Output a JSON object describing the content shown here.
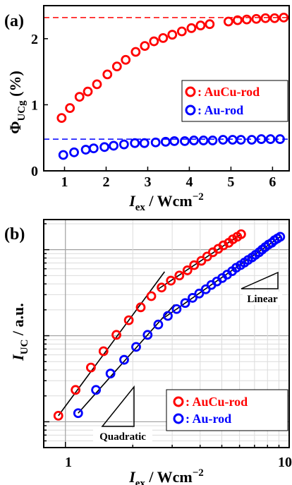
{
  "chart_data": [
    {
      "panel_label": "(a)",
      "type": "scatter",
      "xlabel_main": "I",
      "xlabel_sub": "ex",
      "xlabel_rest": " / Wcm",
      "xlabel_sup": "−2",
      "ylabel_main": "Φ",
      "ylabel_sub": "UCg",
      "ylabel_rest": " (%)",
      "xlim": [
        0.5,
        6.4
      ],
      "ylim": [
        0,
        2.5
      ],
      "xticks": [
        1,
        2,
        3,
        4,
        5,
        6
      ],
      "xtick_labels": [
        "1",
        "2",
        "3",
        "4",
        "5",
        "6"
      ],
      "yticks": [
        0,
        1,
        2
      ],
      "ytick_labels": [
        "0",
        "1",
        "2"
      ],
      "grid": false,
      "legend_placement": "center-right",
      "reference_lines": [
        {
          "series": "AuCu-rod",
          "y": 2.32
        },
        {
          "series": "Au-rod",
          "y": 0.48
        }
      ],
      "series": [
        {
          "name": ": AuCu-rod",
          "color": "#ff0000",
          "x": [
            0.93,
            1.13,
            1.36,
            1.56,
            1.78,
            2.03,
            2.26,
            2.47,
            2.71,
            2.93,
            3.15,
            3.37,
            3.59,
            3.82,
            4.05,
            4.27,
            4.49,
            4.94,
            5.16,
            5.38,
            5.61,
            5.83,
            6.05,
            6.27
          ],
          "y": [
            0.8,
            0.95,
            1.12,
            1.2,
            1.31,
            1.46,
            1.58,
            1.68,
            1.8,
            1.89,
            1.96,
            2.01,
            2.06,
            2.11,
            2.16,
            2.2,
            2.22,
            2.26,
            2.28,
            2.29,
            2.3,
            2.31,
            2.31,
            2.32
          ]
        },
        {
          "name": ": Au-rod",
          "color": "#0000ff",
          "x": [
            0.97,
            1.23,
            1.51,
            1.7,
            1.96,
            2.18,
            2.43,
            2.69,
            2.92,
            3.19,
            3.43,
            3.64,
            3.89,
            4.11,
            4.34,
            4.56,
            4.81,
            5.04,
            5.24,
            5.5,
            5.73,
            5.95,
            6.18
          ],
          "y": [
            0.24,
            0.28,
            0.32,
            0.34,
            0.36,
            0.38,
            0.4,
            0.42,
            0.42,
            0.43,
            0.44,
            0.45,
            0.45,
            0.46,
            0.46,
            0.46,
            0.47,
            0.47,
            0.47,
            0.47,
            0.48,
            0.48,
            0.48
          ]
        }
      ]
    },
    {
      "panel_label": "(b)",
      "type": "scatter",
      "xscale": "log",
      "yscale": "log",
      "xlabel_main": "I",
      "xlabel_sub": "ex",
      "xlabel_rest": " / Wcm",
      "xlabel_sup": "−2",
      "ylabel_main": "I",
      "ylabel_sub": "UC",
      "ylabel_rest": " / a.u.",
      "xlim": [
        0.8,
        10
      ],
      "ylim_decades": [
        -2.3,
        0.35
      ],
      "xtick_labels": [
        "1",
        "10"
      ],
      "grid": true,
      "legend_placement": "bottom-right",
      "slope_labels": [
        "Quadratic",
        "Linear"
      ],
      "series": [
        {
          "name": ": AuCu-rod",
          "color": "#ff0000",
          "x": [
            0.93,
            1.11,
            1.3,
            1.48,
            1.69,
            1.92,
            2.17,
            2.42,
            2.69,
            2.96,
            3.23,
            3.51,
            3.76,
            4.05,
            4.3,
            4.56,
            4.82,
            5.08,
            5.37,
            5.6,
            5.86,
            6.1
          ],
          "y": [
            -1.93,
            -1.63,
            -1.37,
            -1.18,
            -0.99,
            -0.82,
            -0.67,
            -0.54,
            -0.44,
            -0.36,
            -0.3,
            -0.24,
            -0.18,
            -0.13,
            -0.08,
            -0.03,
            0.01,
            0.05,
            0.08,
            0.12,
            0.15,
            0.18
          ]
        },
        {
          "name": ": Au-rod",
          "color": "#0000ff",
          "x": [
            1.14,
            1.37,
            1.59,
            1.83,
            2.07,
            2.33,
            2.6,
            2.87,
            3.14,
            3.43,
            3.7,
            3.96,
            4.24,
            4.49,
            4.75,
            5.02,
            5.28,
            5.56,
            5.8,
            6.06,
            6.31,
            6.55,
            6.83,
            7.07,
            7.34,
            7.57,
            7.82,
            8.09,
            8.36,
            8.6,
            8.86,
            9.12
          ],
          "y": [
            -1.9,
            -1.63,
            -1.44,
            -1.28,
            -1.13,
            -0.99,
            -0.87,
            -0.77,
            -0.69,
            -0.62,
            -0.56,
            -0.51,
            -0.46,
            -0.41,
            -0.37,
            -0.33,
            -0.29,
            -0.25,
            -0.21,
            -0.18,
            -0.15,
            -0.12,
            -0.09,
            -0.06,
            -0.03,
            0.0,
            0.03,
            0.06,
            0.08,
            0.11,
            0.13,
            0.15
          ]
        }
      ]
    }
  ]
}
